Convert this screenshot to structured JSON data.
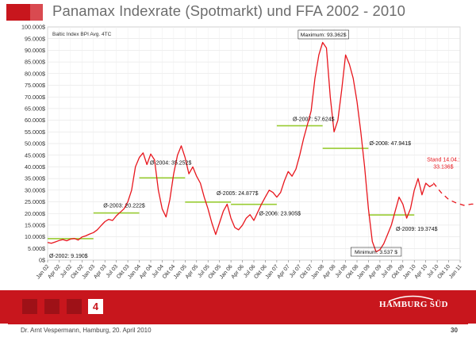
{
  "header": {
    "title": "Panamax Indexrate (Spotmarkt) und FFA 2002 - 2010"
  },
  "nav": {
    "current_page": "4"
  },
  "brand": {
    "name": "HAMBURG SÜD"
  },
  "footer": {
    "author_text": "Dr. Arnt Vespermann, Hamburg, 20. April 2010",
    "page_number": "30"
  },
  "colors": {
    "accent": "#c8161d",
    "series": "#e8161d",
    "averages": "#99cc33",
    "axis": "#555555"
  },
  "chart_data": {
    "type": "line",
    "title": "",
    "inner_label": "Baltic Index BPI Avg. 4TC",
    "xlabel": "",
    "ylabel": "",
    "ylim": [
      0,
      100000
    ],
    "y_ticks": [
      "0$",
      "5.000$",
      "10.000$",
      "15.000$",
      "20.000$",
      "25.000$",
      "30.000$",
      "35.000$",
      "40.000$",
      "45.000$",
      "50.000$",
      "55.000$",
      "60.000$",
      "65.000$",
      "70.000$",
      "75.000$",
      "80.000$",
      "85.000$",
      "90.000$",
      "95.000$",
      "100.000$"
    ],
    "x_ticks": [
      "Jan 02",
      "Apr 02",
      "Jul 02",
      "Okt 02",
      "Jan 03",
      "Apr 03",
      "Jul 03",
      "Okt 03",
      "Jan 04",
      "Apr 04",
      "Jul 04",
      "Okt 04",
      "Jan 05",
      "Apr 05",
      "Jul 05",
      "Okt 05",
      "Jan 06",
      "Apr 06",
      "Jul 06",
      "Okt 06",
      "Jan 07",
      "Apr 07",
      "Jul 07",
      "Okt 07",
      "Jan 08",
      "Apr 08",
      "Jul 08",
      "Okt 08",
      "Jan 09",
      "Apr 09",
      "Jul 09",
      "Okt 09",
      "Jan 10",
      "Apr 10",
      "Jul 10",
      "Okt 10",
      "Jan 11"
    ],
    "grid": true,
    "series": [
      {
        "values": [
          [
            0,
            7600
          ],
          [
            1,
            7200
          ],
          [
            2,
            7800
          ],
          [
            3,
            8400
          ],
          [
            4,
            8800
          ],
          [
            5,
            8300
          ],
          [
            6,
            9000
          ],
          [
            7,
            9300
          ],
          [
            8,
            8600
          ],
          [
            9,
            9900
          ],
          [
            10,
            10400
          ],
          [
            11,
            11200
          ],
          [
            12,
            11800
          ],
          [
            13,
            13000
          ],
          [
            14,
            14800
          ],
          [
            15,
            16500
          ],
          [
            16,
            17500
          ],
          [
            17,
            17000
          ],
          [
            18,
            19000
          ],
          [
            19,
            20500
          ],
          [
            20,
            22000
          ],
          [
            21,
            25000
          ],
          [
            22,
            30000
          ],
          [
            23,
            40000
          ],
          [
            24,
            44000
          ],
          [
            25,
            46000
          ],
          [
            26,
            41000
          ],
          [
            27,
            45500
          ],
          [
            28,
            43000
          ],
          [
            29,
            30000
          ],
          [
            30,
            22000
          ],
          [
            31,
            18500
          ],
          [
            32,
            26000
          ],
          [
            33,
            37000
          ],
          [
            34,
            45000
          ],
          [
            35,
            49000
          ],
          [
            36,
            44000
          ],
          [
            37,
            37000
          ],
          [
            38,
            40000
          ],
          [
            39,
            36000
          ],
          [
            40,
            33000
          ],
          [
            41,
            27000
          ],
          [
            42,
            22000
          ],
          [
            43,
            16000
          ],
          [
            44,
            11000
          ],
          [
            45,
            16000
          ],
          [
            46,
            21000
          ],
          [
            47,
            24000
          ],
          [
            48,
            18000
          ],
          [
            49,
            14000
          ],
          [
            50,
            13000
          ],
          [
            51,
            15000
          ],
          [
            52,
            18000
          ],
          [
            53,
            19500
          ],
          [
            54,
            17000
          ],
          [
            55,
            20500
          ],
          [
            56,
            24000
          ],
          [
            57,
            27000
          ],
          [
            58,
            30000
          ],
          [
            59,
            29000
          ],
          [
            60,
            27000
          ],
          [
            61,
            29000
          ],
          [
            62,
            34000
          ],
          [
            63,
            38000
          ],
          [
            64,
            36000
          ],
          [
            65,
            39000
          ],
          [
            66,
            45000
          ],
          [
            67,
            52000
          ],
          [
            68,
            58000
          ],
          [
            69,
            64000
          ],
          [
            70,
            78000
          ],
          [
            71,
            88000
          ],
          [
            72,
            93362
          ],
          [
            73,
            91000
          ],
          [
            74,
            70000
          ],
          [
            75,
            55000
          ],
          [
            76,
            60000
          ],
          [
            77,
            73000
          ],
          [
            78,
            88000
          ],
          [
            79,
            84000
          ],
          [
            80,
            78000
          ],
          [
            81,
            68000
          ],
          [
            82,
            55000
          ],
          [
            83,
            40000
          ],
          [
            84,
            22000
          ],
          [
            85,
            8000
          ],
          [
            86,
            3537
          ],
          [
            87,
            4500
          ],
          [
            88,
            7000
          ],
          [
            89,
            11000
          ],
          [
            90,
            15000
          ],
          [
            91,
            21000
          ],
          [
            92,
            27000
          ],
          [
            93,
            24000
          ],
          [
            94,
            18000
          ],
          [
            95,
            22000
          ],
          [
            96,
            30000
          ],
          [
            97,
            35000
          ],
          [
            98,
            28000
          ],
          [
            99,
            33000
          ],
          [
            100,
            31500
          ],
          [
            101,
            32500
          ]
        ]
      },
      {
        "name": "FFA",
        "style": "dashed",
        "values": [
          [
            101,
            33136
          ],
          [
            103,
            29000
          ],
          [
            105,
            26000
          ],
          [
            107,
            24500
          ],
          [
            109,
            23500
          ],
          [
            111,
            24000
          ],
          [
            112,
            24000
          ]
        ]
      }
    ],
    "averages": [
      {
        "label": "Ø-2002: 9.190$",
        "value": 9190,
        "x0": 0,
        "x1": 12
      },
      {
        "label": "Ø-2003: 20.222$",
        "value": 20222,
        "x0": 12,
        "x1": 24
      },
      {
        "label": "Ø-2004: 35.252$",
        "value": 35252,
        "x0": 24,
        "x1": 36
      },
      {
        "label": "Ø-2005: 24.877$",
        "value": 24877,
        "x0": 36,
        "x1": 48
      },
      {
        "label": "Ø-2006: 23.905$",
        "value": 23905,
        "x0": 48,
        "x1": 60
      },
      {
        "label": "Ø-2007: 57.624$",
        "value": 57624,
        "x0": 60,
        "x1": 72
      },
      {
        "label": "Ø-2008: 47.941$",
        "value": 47941,
        "x0": 72,
        "x1": 84
      },
      {
        "label": "Ø-2009: 19.374$",
        "value": 19374,
        "x0": 84,
        "x1": 96
      }
    ],
    "annotations": {
      "maximum": "Maximum: 93.362$",
      "minimum": "Minimum: 3.537 $",
      "current_line1": "Stand 14.04.:",
      "current_line2": "33.136$"
    }
  }
}
